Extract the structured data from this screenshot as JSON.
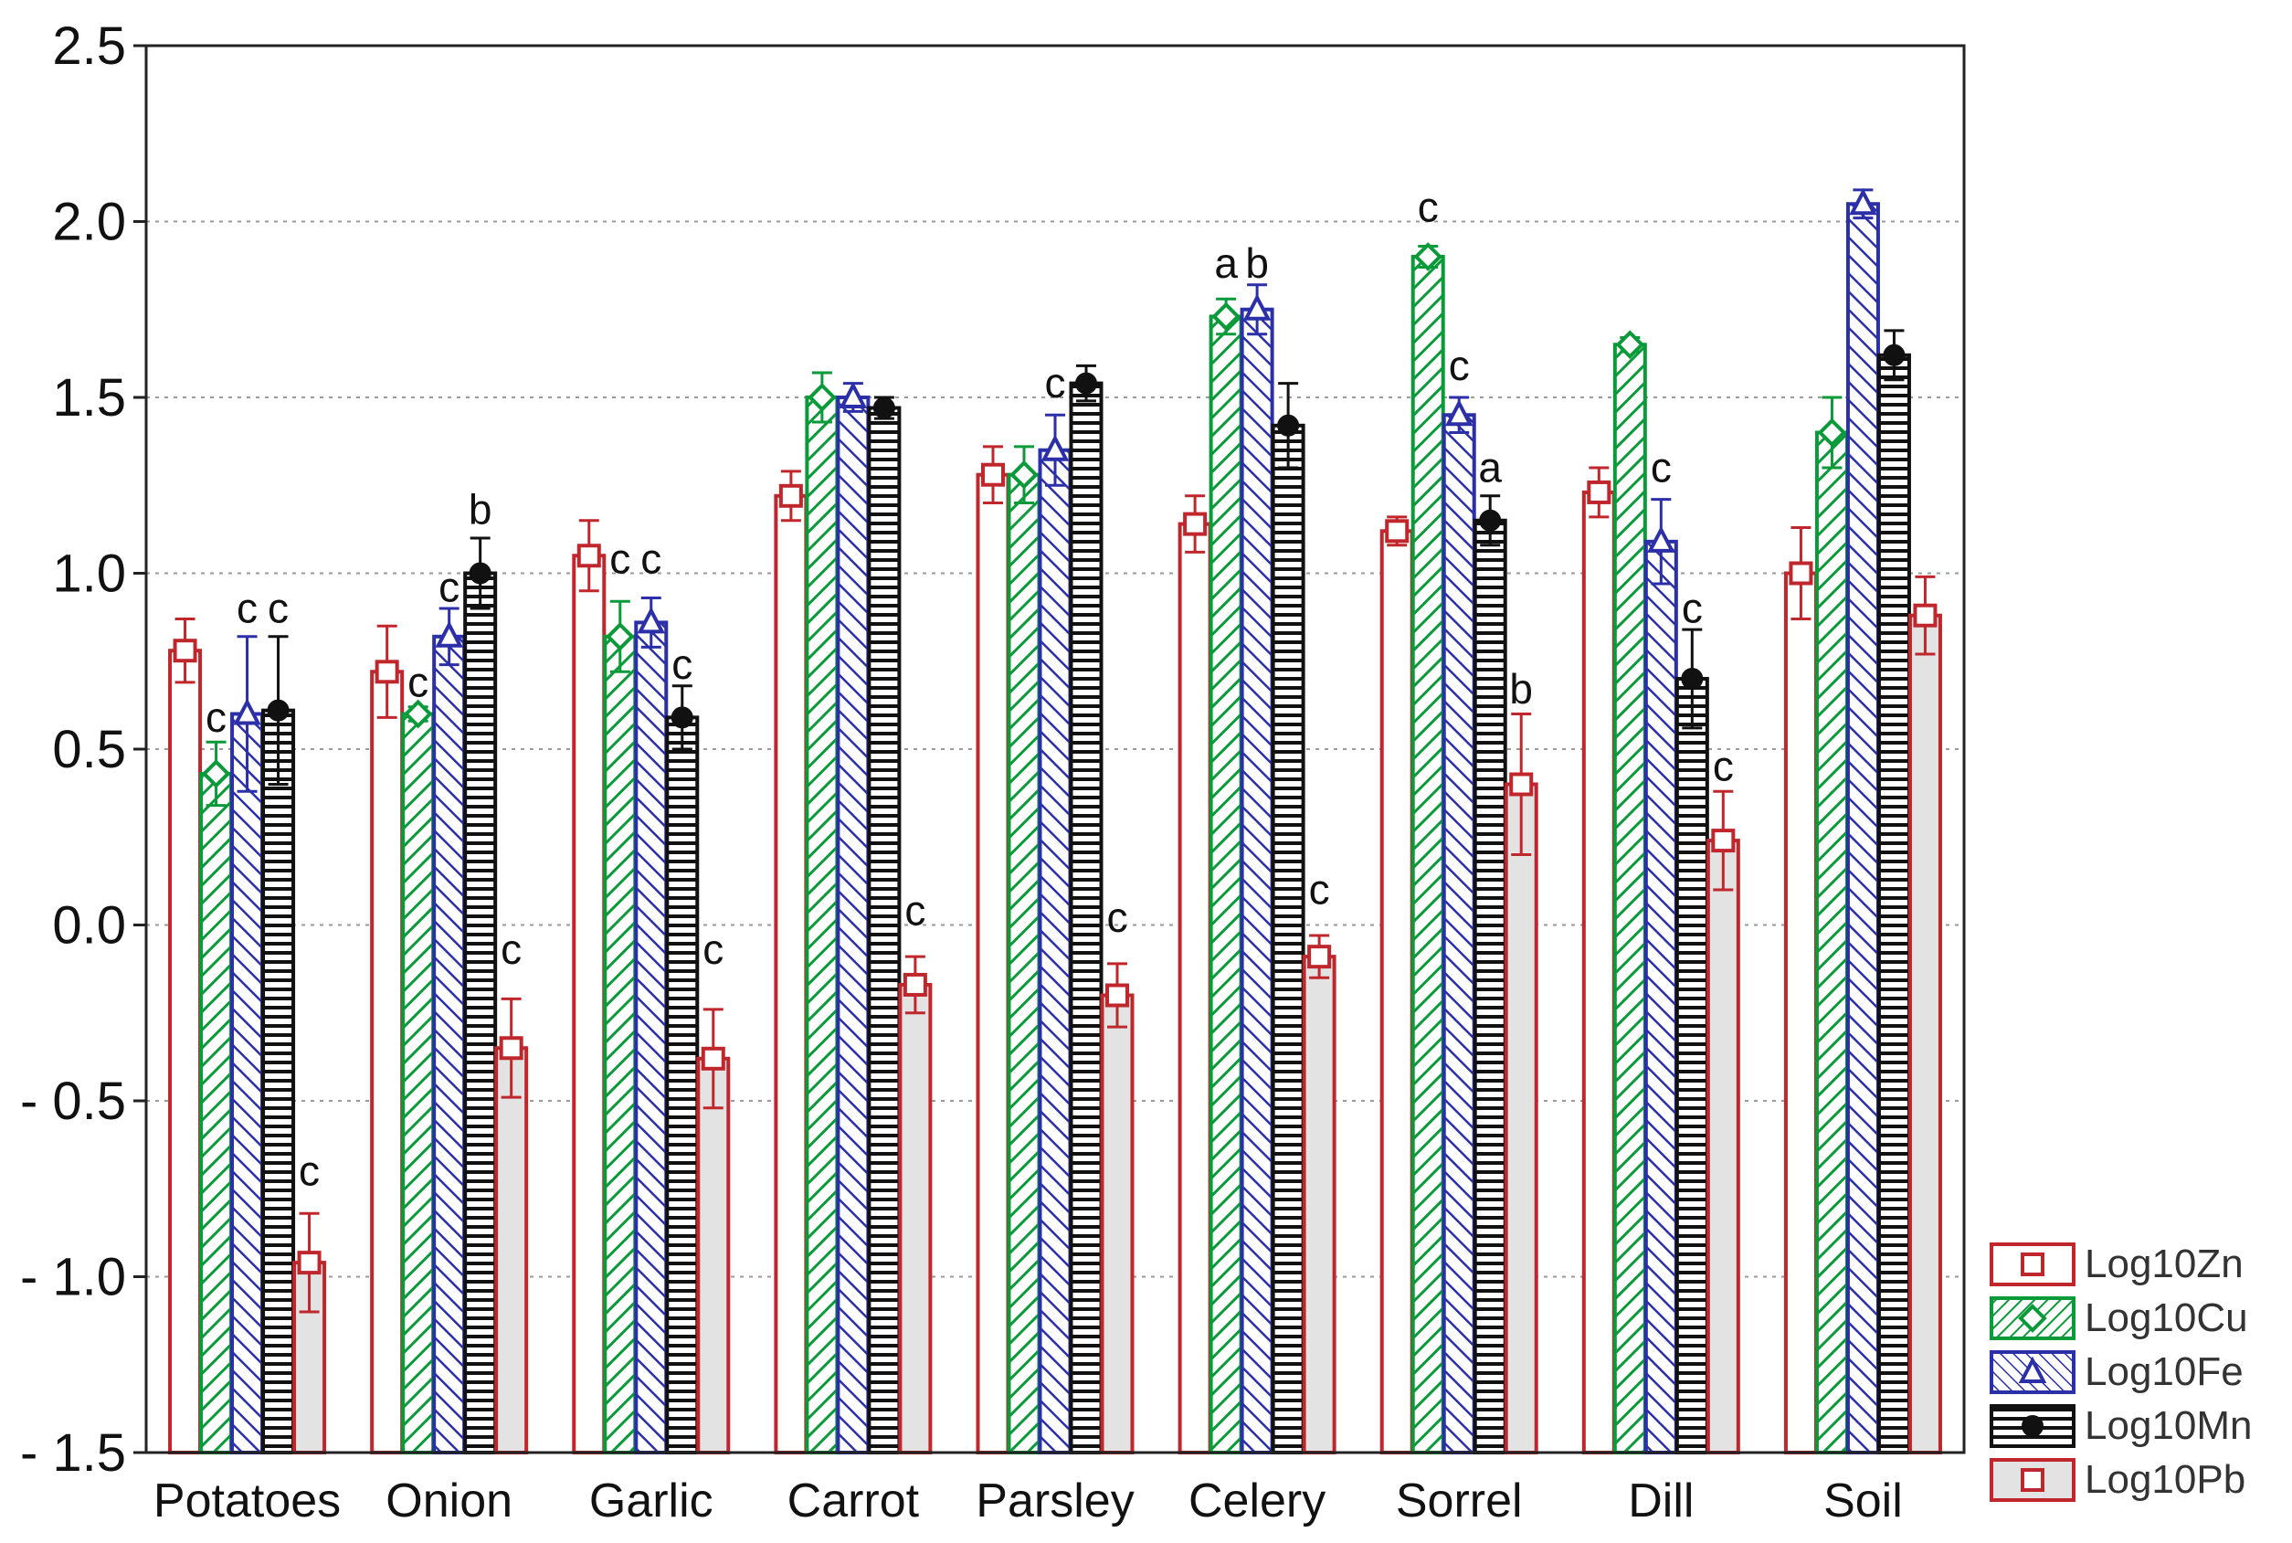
{
  "chart_data": {
    "type": "bar",
    "title": "",
    "xlabel": "",
    "ylabel": "",
    "ylim": [
      -1.5,
      2.5
    ],
    "yticks": [
      2.5,
      2.0,
      1.5,
      1.0,
      0.5,
      0.0,
      -0.5,
      -1.0,
      -1.5
    ],
    "ytick_labels": [
      "2.5",
      "2.0",
      "1.5",
      "1.0",
      "0.5",
      "0.0",
      "- 0.5",
      "- 1.0",
      "- 1.5"
    ],
    "grid": true,
    "legend_position": "bottom-right",
    "categories": [
      "Potatoes",
      "Onion",
      "Garlic",
      "Carrot",
      "Parsley",
      "Celery",
      "Sorrel",
      "Dill",
      "Soil"
    ],
    "series": [
      {
        "name": "Log10Zn",
        "color": "#c0272d",
        "pattern": "empty",
        "marker": "square",
        "values": [
          0.78,
          0.72,
          1.05,
          1.22,
          1.28,
          1.14,
          1.12,
          1.23,
          1.0
        ],
        "errors": [
          0.09,
          0.13,
          0.1,
          0.07,
          0.08,
          0.08,
          0.04,
          0.07,
          0.13
        ],
        "labels": [
          "",
          "",
          "",
          "",
          "",
          "",
          "",
          "",
          ""
        ]
      },
      {
        "name": "Log10Cu",
        "color": "#0b9a3a",
        "pattern": "diagonal",
        "marker": "diamond",
        "values": [
          0.43,
          0.6,
          0.82,
          1.5,
          1.28,
          1.73,
          1.9,
          1.65,
          1.4
        ],
        "errors": [
          0.09,
          0.02,
          0.1,
          0.07,
          0.08,
          0.05,
          0.03,
          0.02,
          0.1
        ],
        "labels": [
          "c",
          "c",
          "c",
          "",
          "",
          "a",
          "c",
          "",
          ""
        ],
        "label_values": [
          0.55,
          0.65,
          1.0,
          null,
          null,
          1.84,
          2.0,
          null,
          null
        ]
      },
      {
        "name": "Log10Fe",
        "color": "#2b2fa8",
        "pattern": "diagonal-rev",
        "marker": "triangle",
        "values": [
          0.6,
          0.82,
          0.86,
          1.5,
          1.35,
          1.75,
          1.45,
          1.09,
          2.05
        ],
        "errors": [
          0.22,
          0.08,
          0.07,
          0.04,
          0.1,
          0.07,
          0.05,
          0.12,
          0.04
        ],
        "labels": [
          "c",
          "c",
          "c",
          "",
          "c",
          "b",
          "c",
          "c",
          ""
        ],
        "label_values": [
          0.86,
          0.92,
          1.0,
          null,
          1.5,
          1.84,
          1.55,
          1.26,
          null
        ]
      },
      {
        "name": "Log10Mn",
        "color": "#111111",
        "pattern": "horizontal",
        "marker": "dot",
        "values": [
          0.61,
          1.0,
          0.59,
          1.47,
          1.54,
          1.42,
          1.15,
          0.7,
          1.62
        ],
        "errors": [
          0.21,
          0.1,
          0.09,
          0.03,
          0.05,
          0.12,
          0.07,
          0.14,
          0.07
        ],
        "labels": [
          "c",
          "b",
          "c",
          "",
          "",
          "",
          "a",
          "c",
          ""
        ],
        "label_values": [
          0.86,
          1.14,
          0.7,
          null,
          null,
          null,
          1.26,
          0.86,
          null
        ]
      },
      {
        "name": "Log10Pb",
        "color": "#c0272d",
        "pattern": "filled-gray",
        "marker": "square",
        "values": [
          -0.96,
          -0.35,
          -0.38,
          -0.17,
          -0.2,
          -0.09,
          0.4,
          0.24,
          0.88
        ],
        "errors": [
          0.14,
          0.14,
          0.14,
          0.08,
          0.09,
          0.06,
          0.2,
          0.14,
          0.11
        ],
        "labels": [
          "c",
          "c",
          "c",
          "c",
          "c",
          "c",
          "b",
          "c",
          ""
        ],
        "label_values": [
          -0.74,
          -0.11,
          -0.11,
          0.0,
          -0.02,
          0.06,
          0.63,
          0.41,
          null
        ]
      }
    ]
  }
}
